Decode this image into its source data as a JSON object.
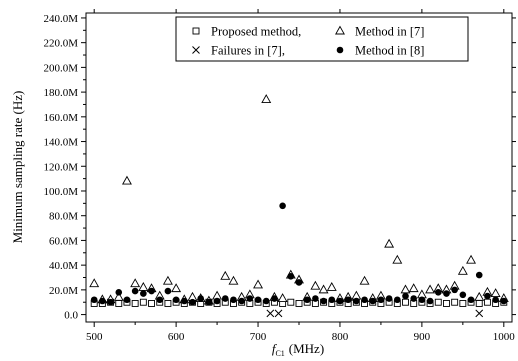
{
  "chart_data": {
    "type": "scatter",
    "title": "",
    "xlabel_symbol": "f",
    "xlabel_subscript": "C1",
    "xlabel_unit": "(MHz)",
    "ylabel": "Minimum sampling rate (Hz)",
    "xlim": [
      490,
      1010
    ],
    "ylim": [
      -6,
      244
    ],
    "x_ticks": [
      500,
      600,
      700,
      800,
      900,
      1000
    ],
    "x_tick_labels": [
      "500",
      "600",
      "700",
      "800",
      "900",
      "1000"
    ],
    "y_ticks": [
      0,
      20,
      40,
      60,
      80,
      100,
      120,
      140,
      160,
      180,
      200,
      220,
      240
    ],
    "y_tick_labels": [
      "0.0",
      "20.0M",
      "40.0M",
      "60.0M",
      "80.0M",
      "100.0M",
      "120.0M",
      "140.0M",
      "160.0M",
      "180.0M",
      "200.0M",
      "220.0M",
      "240.0M"
    ],
    "grid": false,
    "legend_position": "top-right",
    "series": [
      {
        "name": "Proposed method,",
        "marker": "open-square",
        "points": [
          [
            500,
            9
          ],
          [
            510,
            9
          ],
          [
            520,
            10
          ],
          [
            530,
            9
          ],
          [
            540,
            10
          ],
          [
            550,
            9
          ],
          [
            560,
            10
          ],
          [
            570,
            9
          ],
          [
            580,
            10
          ],
          [
            590,
            9
          ],
          [
            600,
            10
          ],
          [
            610,
            9
          ],
          [
            620,
            10
          ],
          [
            630,
            9
          ],
          [
            640,
            10
          ],
          [
            650,
            9
          ],
          [
            660,
            10
          ],
          [
            670,
            9
          ],
          [
            680,
            10
          ],
          [
            690,
            9
          ],
          [
            700,
            10
          ],
          [
            710,
            9
          ],
          [
            720,
            10
          ],
          [
            730,
            9
          ],
          [
            740,
            10
          ],
          [
            750,
            9
          ],
          [
            760,
            10
          ],
          [
            770,
            9
          ],
          [
            780,
            10
          ],
          [
            790,
            9
          ],
          [
            800,
            10
          ],
          [
            810,
            9
          ],
          [
            820,
            10
          ],
          [
            830,
            9
          ],
          [
            840,
            10
          ],
          [
            850,
            9
          ],
          [
            860,
            10
          ],
          [
            870,
            9
          ],
          [
            880,
            10
          ],
          [
            890,
            9
          ],
          [
            900,
            10
          ],
          [
            910,
            9
          ],
          [
            920,
            10
          ],
          [
            930,
            9
          ],
          [
            940,
            10
          ],
          [
            950,
            9
          ],
          [
            960,
            10
          ],
          [
            970,
            9
          ],
          [
            980,
            10
          ],
          [
            990,
            9
          ],
          [
            1000,
            10
          ]
        ]
      },
      {
        "name": "Method in [7]",
        "marker": "open-triangle",
        "points": [
          [
            500,
            25
          ],
          [
            510,
            12
          ],
          [
            520,
            12
          ],
          [
            530,
            14
          ],
          [
            540,
            108
          ],
          [
            550,
            25
          ],
          [
            560,
            22
          ],
          [
            570,
            21
          ],
          [
            580,
            15
          ],
          [
            590,
            27
          ],
          [
            600,
            21
          ],
          [
            610,
            12
          ],
          [
            620,
            14
          ],
          [
            630,
            13
          ],
          [
            640,
            11
          ],
          [
            650,
            15
          ],
          [
            660,
            31
          ],
          [
            670,
            27
          ],
          [
            680,
            14
          ],
          [
            690,
            16
          ],
          [
            700,
            24
          ],
          [
            710,
            174
          ],
          [
            720,
            14
          ],
          [
            730,
            13
          ],
          [
            740,
            32
          ],
          [
            750,
            28
          ],
          [
            760,
            14
          ],
          [
            770,
            23
          ],
          [
            780,
            20
          ],
          [
            790,
            22
          ],
          [
            800,
            13
          ],
          [
            810,
            14
          ],
          [
            820,
            15
          ],
          [
            830,
            27
          ],
          [
            840,
            13
          ],
          [
            850,
            15
          ],
          [
            860,
            57
          ],
          [
            870,
            44
          ],
          [
            880,
            20
          ],
          [
            890,
            21
          ],
          [
            900,
            16
          ],
          [
            910,
            20
          ],
          [
            920,
            21
          ],
          [
            930,
            20
          ],
          [
            940,
            23
          ],
          [
            950,
            35
          ],
          [
            960,
            44
          ],
          [
            970,
            14
          ],
          [
            980,
            18
          ],
          [
            990,
            17
          ],
          [
            1000,
            13
          ]
        ]
      },
      {
        "name": "Failures in [7],",
        "marker": "x",
        "points": [
          [
            715,
            1
          ],
          [
            725,
            1
          ],
          [
            970,
            1
          ]
        ]
      },
      {
        "name": "Method in [8]",
        "marker": "filled-circle",
        "points": [
          [
            500,
            12
          ],
          [
            510,
            11
          ],
          [
            520,
            10
          ],
          [
            530,
            18
          ],
          [
            540,
            12
          ],
          [
            550,
            19
          ],
          [
            560,
            17
          ],
          [
            570,
            19
          ],
          [
            580,
            12
          ],
          [
            590,
            19
          ],
          [
            600,
            12
          ],
          [
            610,
            11
          ],
          [
            620,
            10
          ],
          [
            630,
            13
          ],
          [
            640,
            10
          ],
          [
            650,
            11
          ],
          [
            660,
            13
          ],
          [
            670,
            12
          ],
          [
            680,
            11
          ],
          [
            690,
            13
          ],
          [
            700,
            12
          ],
          [
            710,
            11
          ],
          [
            720,
            13
          ],
          [
            730,
            88
          ],
          [
            740,
            31
          ],
          [
            750,
            26
          ],
          [
            760,
            12
          ],
          [
            770,
            13
          ],
          [
            780,
            11
          ],
          [
            790,
            12
          ],
          [
            800,
            11
          ],
          [
            810,
            12
          ],
          [
            820,
            11
          ],
          [
            830,
            12
          ],
          [
            840,
            11
          ],
          [
            850,
            12
          ],
          [
            860,
            13
          ],
          [
            870,
            12
          ],
          [
            880,
            15
          ],
          [
            890,
            13
          ],
          [
            900,
            12
          ],
          [
            910,
            11
          ],
          [
            920,
            18
          ],
          [
            930,
            17
          ],
          [
            940,
            20
          ],
          [
            950,
            16
          ],
          [
            960,
            12
          ],
          [
            970,
            32
          ],
          [
            980,
            15
          ],
          [
            990,
            12
          ],
          [
            1000,
            11
          ]
        ]
      }
    ]
  }
}
